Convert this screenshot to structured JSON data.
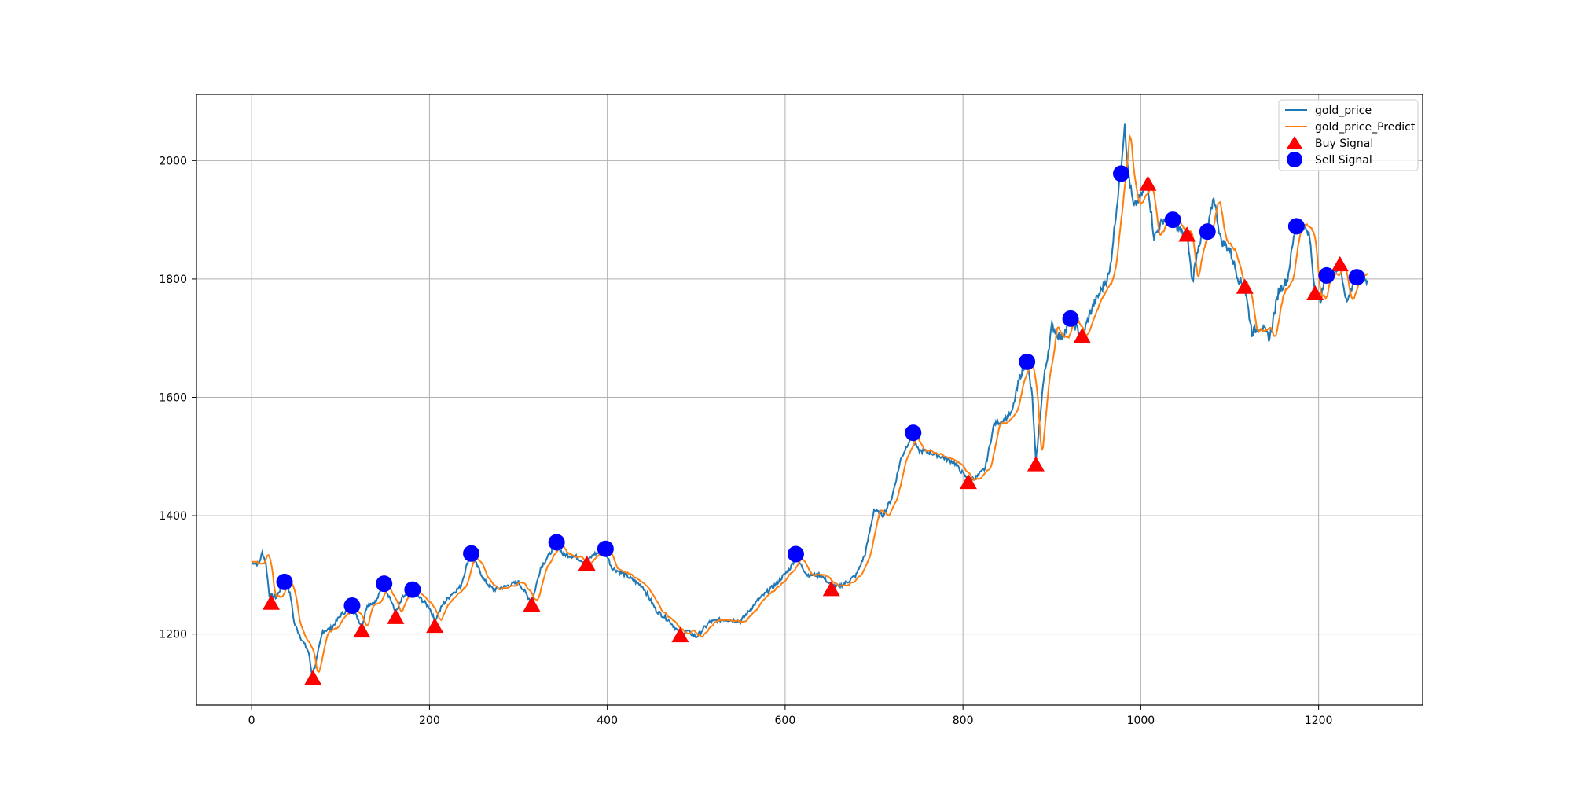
{
  "chart_data": {
    "type": "line",
    "title": "",
    "xlabel": "",
    "ylabel": "",
    "xlim": [
      -62,
      1317
    ],
    "ylim": [
      1080,
      2112
    ],
    "x_ticks": [
      0,
      200,
      400,
      600,
      800,
      1000,
      1200
    ],
    "y_ticks": [
      1200,
      1400,
      1600,
      1800,
      2000
    ],
    "grid": true,
    "legend_position": "top-right",
    "colors": {
      "gold_price": "#1f77b4",
      "gold_price_Predict": "#ff7f0e",
      "buy": "#ff0000",
      "sell": "#0000ff"
    },
    "series": [
      {
        "name": "gold_price",
        "anchors": [
          [
            0,
            1322
          ],
          [
            8,
            1318
          ],
          [
            12,
            1338
          ],
          [
            16,
            1320
          ],
          [
            20,
            1265
          ],
          [
            28,
            1262
          ],
          [
            36,
            1288
          ],
          [
            40,
            1285
          ],
          [
            44,
            1262
          ],
          [
            48,
            1218
          ],
          [
            56,
            1192
          ],
          [
            64,
            1170
          ],
          [
            68,
            1130
          ],
          [
            72,
            1150
          ],
          [
            80,
            1205
          ],
          [
            90,
            1210
          ],
          [
            100,
            1232
          ],
          [
            112,
            1245
          ],
          [
            120,
            1225
          ],
          [
            124,
            1212
          ],
          [
            130,
            1250
          ],
          [
            140,
            1255
          ],
          [
            148,
            1283
          ],
          [
            156,
            1260
          ],
          [
            162,
            1235
          ],
          [
            170,
            1262
          ],
          [
            180,
            1273
          ],
          [
            190,
            1260
          ],
          [
            200,
            1245
          ],
          [
            206,
            1222
          ],
          [
            215,
            1250
          ],
          [
            225,
            1268
          ],
          [
            235,
            1280
          ],
          [
            245,
            1332
          ],
          [
            252,
            1320
          ],
          [
            262,
            1290
          ],
          [
            272,
            1275
          ],
          [
            285,
            1280
          ],
          [
            300,
            1288
          ],
          [
            312,
            1260
          ],
          [
            316,
            1258
          ],
          [
            325,
            1312
          ],
          [
            335,
            1335
          ],
          [
            343,
            1353
          ],
          [
            350,
            1335
          ],
          [
            365,
            1330
          ],
          [
            376,
            1320
          ],
          [
            385,
            1335
          ],
          [
            398,
            1340
          ],
          [
            405,
            1312
          ],
          [
            420,
            1300
          ],
          [
            440,
            1280
          ],
          [
            455,
            1240
          ],
          [
            470,
            1222
          ],
          [
            482,
            1200
          ],
          [
            490,
            1205
          ],
          [
            500,
            1195
          ],
          [
            515,
            1220
          ],
          [
            530,
            1225
          ],
          [
            550,
            1222
          ],
          [
            570,
            1258
          ],
          [
            590,
            1285
          ],
          [
            605,
            1310
          ],
          [
            612,
            1330
          ],
          [
            625,
            1300
          ],
          [
            640,
            1300
          ],
          [
            652,
            1282
          ],
          [
            660,
            1280
          ],
          [
            670,
            1288
          ],
          [
            680,
            1300
          ],
          [
            690,
            1335
          ],
          [
            700,
            1410
          ],
          [
            710,
            1400
          ],
          [
            720,
            1430
          ],
          [
            730,
            1495
          ],
          [
            742,
            1535
          ],
          [
            750,
            1510
          ],
          [
            760,
            1508
          ],
          [
            775,
            1500
          ],
          [
            790,
            1490
          ],
          [
            806,
            1460
          ],
          [
            815,
            1465
          ],
          [
            825,
            1480
          ],
          [
            835,
            1555
          ],
          [
            845,
            1560
          ],
          [
            855,
            1575
          ],
          [
            865,
            1640
          ],
          [
            872,
            1660
          ],
          [
            878,
            1600
          ],
          [
            882,
            1490
          ],
          [
            890,
            1620
          ],
          [
            900,
            1720
          ],
          [
            910,
            1700
          ],
          [
            922,
            1730
          ],
          [
            934,
            1702
          ],
          [
            945,
            1750
          ],
          [
            955,
            1780
          ],
          [
            965,
            1810
          ],
          [
            972,
            1910
          ],
          [
            977,
            1975
          ],
          [
            982,
            2065
          ],
          [
            985,
            1990
          ],
          [
            992,
            1920
          ],
          [
            1000,
            1940
          ],
          [
            1008,
            1958
          ],
          [
            1015,
            1870
          ],
          [
            1025,
            1900
          ],
          [
            1035,
            1900
          ],
          [
            1045,
            1880
          ],
          [
            1052,
            1876
          ],
          [
            1058,
            1795
          ],
          [
            1065,
            1860
          ],
          [
            1075,
            1880
          ],
          [
            1082,
            1940
          ],
          [
            1090,
            1865
          ],
          [
            1100,
            1850
          ],
          [
            1110,
            1800
          ],
          [
            1117,
            1786
          ],
          [
            1125,
            1710
          ],
          [
            1135,
            1720
          ],
          [
            1145,
            1700
          ],
          [
            1155,
            1780
          ],
          [
            1165,
            1800
          ],
          [
            1174,
            1888
          ],
          [
            1182,
            1893
          ],
          [
            1190,
            1870
          ],
          [
            1196,
            1776
          ],
          [
            1202,
            1765
          ],
          [
            1208,
            1803
          ],
          [
            1216,
            1810
          ],
          [
            1224,
            1822
          ],
          [
            1232,
            1760
          ],
          [
            1240,
            1800
          ],
          [
            1250,
            1810
          ],
          [
            1255,
            1795
          ]
        ]
      },
      {
        "name": "gold_price_Predict",
        "lag": 5
      }
    ],
    "markers": {
      "buy": {
        "name": "Buy Signal",
        "points": [
          [
            22,
            1252
          ],
          [
            69,
            1125
          ],
          [
            124,
            1205
          ],
          [
            162,
            1228
          ],
          [
            206,
            1213
          ],
          [
            315,
            1249
          ],
          [
            377,
            1318
          ],
          [
            482,
            1197
          ],
          [
            652,
            1275
          ],
          [
            806,
            1456
          ],
          [
            882,
            1486
          ],
          [
            934,
            1703
          ],
          [
            1008,
            1960
          ],
          [
            1052,
            1874
          ],
          [
            1117,
            1786
          ],
          [
            1196,
            1775
          ],
          [
            1224,
            1824
          ]
        ]
      },
      "sell": {
        "name": "Sell Signal",
        "points": [
          [
            37,
            1288
          ],
          [
            113,
            1248
          ],
          [
            149,
            1285
          ],
          [
            181,
            1275
          ],
          [
            247,
            1336
          ],
          [
            343,
            1355
          ],
          [
            398,
            1344
          ],
          [
            612,
            1335
          ],
          [
            744,
            1540
          ],
          [
            872,
            1660
          ],
          [
            921,
            1733
          ],
          [
            978,
            1978
          ],
          [
            1036,
            1900
          ],
          [
            1075,
            1880
          ],
          [
            1175,
            1889
          ],
          [
            1209,
            1806
          ],
          [
            1243,
            1803
          ]
        ]
      }
    },
    "legend": [
      {
        "label": "gold_price",
        "kind": "line",
        "color": "#1f77b4"
      },
      {
        "label": "gold_price_Predict",
        "kind": "line",
        "color": "#ff7f0e"
      },
      {
        "label": "Buy Signal",
        "kind": "triangle",
        "color": "#ff0000"
      },
      {
        "label": "Sell Signal",
        "kind": "circle",
        "color": "#0000ff"
      }
    ]
  }
}
